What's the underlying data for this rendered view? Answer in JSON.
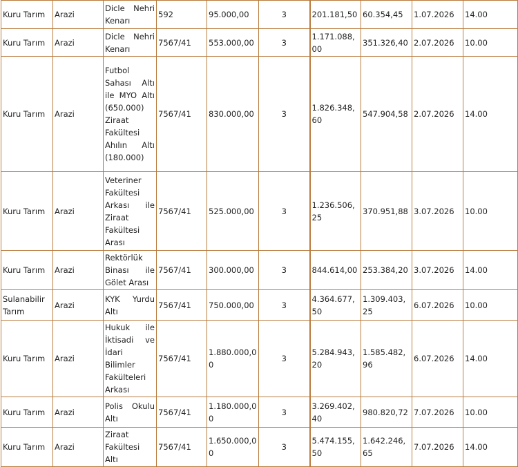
{
  "table": {
    "rows": [
      [
        "Kuru Tarım",
        "Arazi",
        "Dicle Nehri Kenarı",
        "592",
        "95.000,00",
        "3",
        "201.181,50",
        "60.354,45",
        "1.07.2026",
        "14.00"
      ],
      [
        "Kuru Tarım",
        "Arazi",
        "Dicle Nehri Kenarı",
        "7567/41",
        "553.000,00",
        "3",
        "1.171.088,00",
        "351.326,40",
        "2.07.2026",
        "10.00"
      ],
      [
        "Kuru Tarım",
        "Arazi",
        "Futbol Sahası Altı ile MYO Altı (650.000) Ziraat Fakültesi Ahılın Altı (180.000)",
        "7567/41",
        "830.000,00",
        "3",
        "1.826.348,60",
        "547.904,58",
        "2.07.2026",
        "14.00"
      ],
      [
        "Kuru Tarım",
        "Arazi",
        "Veteriner Fakültesi Arkası ile Ziraat Fakültesi Arası",
        "7567/41",
        "525.000,00",
        "3",
        "1.236.506,25",
        "370.951,88",
        "3.07.2026",
        "10.00"
      ],
      [
        "Kuru Tarım",
        "Arazi",
        "Rektörlük Binası ile Gölet Arası",
        "7567/41",
        "300.000,00",
        "3",
        "844.614,00",
        "253.384,20",
        "3.07.2026",
        "14.00"
      ],
      [
        "Sulanabilir Tarım",
        "Arazi",
        "KYK Yurdu Altı",
        "7567/41",
        "750.000,00",
        "3",
        "4.364.677,50",
        "1.309.403,25",
        "6.07.2026",
        "10.00"
      ],
      [
        "Kuru Tarım",
        "Arazi",
        "Hukuk ile İktisadi ve İdari Bilimler Fakülteleri Arkası",
        "7567/41",
        "1.880.000,00",
        "3",
        "5.284.943,20",
        "1.585.482,96",
        "6.07.2026",
        "14.00"
      ],
      [
        "Kuru Tarım",
        "Arazi",
        "Polis Okulu Altı",
        "7567/41",
        "1.180.000,00",
        "3",
        "3.269.402,40",
        "980.820,72",
        "7.07.2026",
        "10.00"
      ],
      [
        "Kuru Tarım",
        "Arazi",
        "Ziraat Fakültesi Altı",
        "7567/41",
        "1.650.000,00",
        "3",
        "5.474.155,50",
        "1.642.246,65",
        "7.07.2026",
        "14.00"
      ]
    ]
  }
}
